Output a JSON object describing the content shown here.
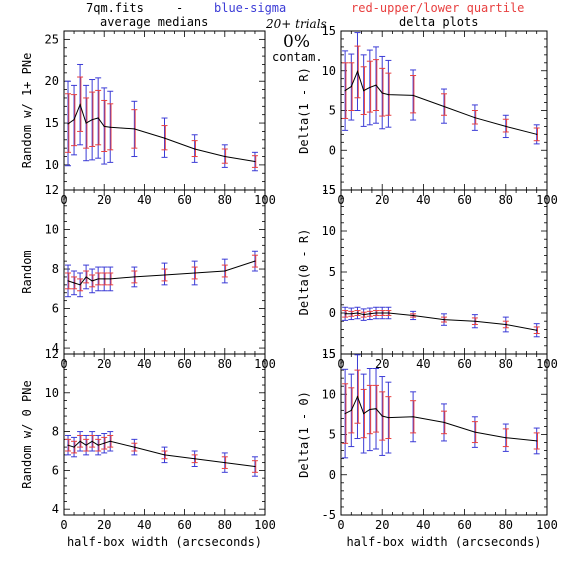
{
  "header": {
    "file": "7qm.fits",
    "dash": "-",
    "blue_label": "blue-sigma",
    "red_label": "red-upper/lower quartile",
    "left_title": "average medians",
    "right_title": "delta plots",
    "trials": "20+ trials",
    "contam_pct": "0%",
    "contam_word": "contam."
  },
  "colors": {
    "line": "#000000",
    "sigma": "#3b3bd6",
    "quartile": "#e84040"
  },
  "chart_data": [
    {
      "type": "line",
      "id": "p1",
      "ylabel": "Random w/ 1+ PNe",
      "xlim": [
        0,
        100
      ],
      "ylim": [
        7,
        26
      ],
      "xticks": [
        0,
        20,
        40,
        60,
        80,
        100
      ],
      "yticks": [
        10,
        15,
        20,
        25
      ],
      "x": [
        2,
        5,
        8,
        11,
        14,
        17,
        20,
        23,
        35,
        50,
        65,
        80,
        95
      ],
      "y": [
        14.9,
        15.4,
        17.2,
        15.0,
        15.4,
        15.6,
        14.6,
        14.5,
        14.3,
        13.2,
        11.9,
        11.0,
        10.4
      ],
      "sigma": [
        [
          9.9,
          20.0
        ],
        [
          11.2,
          19.5
        ],
        [
          12.4,
          22.0
        ],
        [
          10.5,
          19.5
        ],
        [
          10.6,
          20.2
        ],
        [
          10.8,
          20.4
        ],
        [
          10.1,
          19.2
        ],
        [
          10.3,
          18.8
        ],
        [
          11.0,
          17.6
        ],
        [
          10.9,
          15.6
        ],
        [
          10.3,
          13.6
        ],
        [
          9.7,
          12.4
        ],
        [
          9.3,
          11.5
        ]
      ],
      "quartile": [
        [
          11.5,
          18.5
        ],
        [
          12.3,
          18.4
        ],
        [
          14.0,
          20.5
        ],
        [
          12.0,
          18.0
        ],
        [
          12.2,
          18.7
        ],
        [
          12.4,
          18.9
        ],
        [
          11.6,
          17.7
        ],
        [
          11.8,
          17.3
        ],
        [
          12.0,
          16.6
        ],
        [
          11.8,
          14.7
        ],
        [
          11.0,
          12.9
        ],
        [
          10.2,
          11.9
        ],
        [
          9.7,
          11.1
        ]
      ]
    },
    {
      "type": "line",
      "id": "p2",
      "ylabel": "Delta(1 - R)",
      "xlim": [
        0,
        100
      ],
      "ylim": [
        -5,
        15
      ],
      "xticks": [
        0,
        20,
        40,
        60,
        80,
        100
      ],
      "yticks": [
        -5,
        0,
        5,
        10,
        15
      ],
      "x": [
        2,
        5,
        8,
        11,
        14,
        17,
        20,
        23,
        35,
        50,
        65,
        80,
        95
      ],
      "y": [
        7.5,
        8.0,
        9.9,
        7.5,
        7.9,
        8.2,
        7.2,
        7.0,
        6.9,
        5.5,
        4.1,
        3.0,
        2.0
      ],
      "sigma": [
        [
          2.5,
          12.5
        ],
        [
          3.8,
          12.1
        ],
        [
          5.0,
          14.8
        ],
        [
          3.0,
          12.0
        ],
        [
          3.2,
          12.6
        ],
        [
          3.4,
          13.0
        ],
        [
          2.7,
          11.8
        ],
        [
          2.9,
          11.3
        ],
        [
          3.8,
          10.1
        ],
        [
          3.4,
          7.7
        ],
        [
          2.5,
          5.7
        ],
        [
          1.6,
          4.4
        ],
        [
          0.8,
          3.2
        ]
      ],
      "quartile": [
        [
          4.0,
          11.0
        ],
        [
          5.0,
          11.0
        ],
        [
          6.6,
          13.1
        ],
        [
          4.5,
          10.5
        ],
        [
          4.8,
          11.2
        ],
        [
          5.0,
          11.4
        ],
        [
          4.3,
          10.3
        ],
        [
          4.4,
          9.7
        ],
        [
          4.7,
          9.4
        ],
        [
          4.4,
          7.1
        ],
        [
          3.3,
          5.0
        ],
        [
          2.3,
          3.9
        ],
        [
          1.2,
          2.8
        ]
      ]
    },
    {
      "type": "line",
      "id": "p3",
      "ylabel": "Random",
      "xlim": [
        0,
        100
      ],
      "ylim": [
        3.7,
        12
      ],
      "xticks": [
        0,
        20,
        40,
        60,
        80,
        100
      ],
      "yticks": [
        4,
        6,
        8,
        10,
        12
      ],
      "x": [
        2,
        5,
        8,
        11,
        14,
        17,
        20,
        23,
        35,
        50,
        65,
        80,
        95
      ],
      "y": [
        7.4,
        7.3,
        7.2,
        7.6,
        7.4,
        7.5,
        7.5,
        7.5,
        7.6,
        7.7,
        7.8,
        7.9,
        8.4
      ],
      "sigma": [
        [
          6.6,
          8.2
        ],
        [
          6.7,
          7.9
        ],
        [
          6.6,
          7.8
        ],
        [
          7.0,
          8.2
        ],
        [
          6.8,
          8.0
        ],
        [
          6.9,
          8.1
        ],
        [
          6.9,
          8.1
        ],
        [
          6.9,
          8.1
        ],
        [
          7.1,
          8.1
        ],
        [
          7.2,
          8.3
        ],
        [
          7.2,
          8.4
        ],
        [
          7.3,
          8.5
        ],
        [
          7.9,
          8.9
        ]
      ],
      "quartile": [
        [
          7.0,
          7.8
        ],
        [
          7.0,
          7.6
        ],
        [
          6.9,
          7.5
        ],
        [
          7.3,
          7.9
        ],
        [
          7.1,
          7.7
        ],
        [
          7.2,
          7.8
        ],
        [
          7.2,
          7.8
        ],
        [
          7.2,
          7.8
        ],
        [
          7.3,
          7.9
        ],
        [
          7.4,
          8.0
        ],
        [
          7.5,
          8.1
        ],
        [
          7.6,
          8.2
        ],
        [
          8.1,
          8.7
        ]
      ]
    },
    {
      "type": "line",
      "id": "p4",
      "ylabel": "Delta(0 - R)",
      "xlim": [
        0,
        100
      ],
      "ylim": [
        -5,
        15
      ],
      "xticks": [
        0,
        20,
        40,
        60,
        80,
        100
      ],
      "yticks": [
        -5,
        0,
        5,
        10,
        15
      ],
      "x": [
        2,
        5,
        8,
        11,
        14,
        17,
        20,
        23,
        35,
        50,
        65,
        80,
        95
      ],
      "y": [
        -0.1,
        -0.1,
        0.0,
        -0.2,
        -0.1,
        0.0,
        0.0,
        0.0,
        -0.3,
        -0.8,
        -1.0,
        -1.4,
        -2.1
      ],
      "sigma": [
        [
          -0.9,
          0.7
        ],
        [
          -0.8,
          0.6
        ],
        [
          -0.7,
          0.7
        ],
        [
          -0.9,
          0.5
        ],
        [
          -0.8,
          0.6
        ],
        [
          -0.7,
          0.7
        ],
        [
          -0.7,
          0.7
        ],
        [
          -0.7,
          0.7
        ],
        [
          -0.8,
          0.2
        ],
        [
          -1.5,
          -0.1
        ],
        [
          -1.8,
          -0.2
        ],
        [
          -2.3,
          -0.5
        ],
        [
          -2.9,
          -1.3
        ]
      ],
      "quartile": [
        [
          -0.5,
          0.3
        ],
        [
          -0.4,
          0.2
        ],
        [
          -0.3,
          0.3
        ],
        [
          -0.5,
          0.1
        ],
        [
          -0.4,
          0.2
        ],
        [
          -0.3,
          0.3
        ],
        [
          -0.3,
          0.3
        ],
        [
          -0.3,
          0.3
        ],
        [
          -0.5,
          -0.1
        ],
        [
          -1.1,
          -0.5
        ],
        [
          -1.4,
          -0.6
        ],
        [
          -1.8,
          -1.0
        ],
        [
          -2.5,
          -1.7
        ]
      ]
    },
    {
      "type": "line",
      "id": "p5",
      "ylabel": "Random w/ 0 PNe",
      "xlim": [
        0,
        100
      ],
      "ylim": [
        3.7,
        12
      ],
      "xticks": [
        0,
        20,
        40,
        60,
        80,
        100
      ],
      "yticks": [
        4,
        6,
        8,
        10,
        12
      ],
      "x": [
        2,
        5,
        8,
        11,
        14,
        17,
        20,
        23,
        35,
        50,
        65,
        80,
        95
      ],
      "y": [
        7.3,
        7.2,
        7.5,
        7.3,
        7.5,
        7.3,
        7.4,
        7.5,
        7.2,
        6.8,
        6.6,
        6.4,
        6.2
      ],
      "sigma": [
        [
          6.8,
          7.8
        ],
        [
          6.7,
          7.7
        ],
        [
          7.0,
          8.0
        ],
        [
          6.8,
          7.8
        ],
        [
          7.0,
          8.0
        ],
        [
          6.8,
          7.8
        ],
        [
          6.9,
          7.9
        ],
        [
          7.0,
          8.0
        ],
        [
          6.8,
          7.6
        ],
        [
          6.4,
          7.2
        ],
        [
          6.2,
          7.0
        ],
        [
          5.9,
          6.9
        ],
        [
          5.7,
          6.7
        ]
      ],
      "quartile": [
        [
          7.0,
          7.6
        ],
        [
          6.9,
          7.5
        ],
        [
          7.2,
          7.8
        ],
        [
          7.0,
          7.6
        ],
        [
          7.2,
          7.8
        ],
        [
          7.0,
          7.6
        ],
        [
          7.1,
          7.7
        ],
        [
          7.2,
          7.8
        ],
        [
          7.0,
          7.4
        ],
        [
          6.6,
          7.0
        ],
        [
          6.4,
          6.8
        ],
        [
          6.1,
          6.7
        ],
        [
          5.9,
          6.5
        ]
      ]
    },
    {
      "type": "line",
      "id": "p6",
      "ylabel": "Delta(1 - 0)",
      "xlim": [
        0,
        100
      ],
      "ylim": [
        -5,
        15
      ],
      "xticks": [
        0,
        20,
        40,
        60,
        80,
        100
      ],
      "yticks": [
        -5,
        0,
        5,
        10,
        15
      ],
      "xlabel": "half-box width (arcseconds)",
      "x": [
        2,
        5,
        8,
        11,
        14,
        17,
        20,
        23,
        35,
        50,
        65,
        80,
        95
      ],
      "y": [
        7.6,
        8.0,
        9.7,
        7.6,
        8.1,
        8.2,
        7.3,
        7.1,
        7.2,
        6.5,
        5.3,
        4.6,
        4.2
      ],
      "sigma": [
        [
          2.1,
          13.1
        ],
        [
          3.5,
          12.5
        ],
        [
          4.5,
          14.9
        ],
        [
          2.7,
          12.5
        ],
        [
          3.0,
          13.2
        ],
        [
          3.2,
          13.2
        ],
        [
          2.4,
          12.2
        ],
        [
          2.7,
          11.5
        ],
        [
          4.1,
          10.3
        ],
        [
          4.2,
          8.8
        ],
        [
          3.4,
          7.2
        ],
        [
          2.9,
          6.3
        ],
        [
          2.6,
          5.8
        ]
      ],
      "quartile": [
        [
          3.9,
          11.3
        ],
        [
          5.2,
          10.8
        ],
        [
          6.4,
          13.0
        ],
        [
          4.6,
          10.6
        ],
        [
          5.1,
          11.1
        ],
        [
          5.3,
          11.1
        ],
        [
          4.3,
          10.3
        ],
        [
          4.5,
          9.7
        ],
        [
          5.2,
          9.2
        ],
        [
          5.1,
          7.9
        ],
        [
          4.0,
          6.6
        ],
        [
          3.5,
          5.7
        ],
        [
          3.2,
          5.2
        ]
      ]
    }
  ],
  "footer": {
    "xlabel_left": "half-box width (arcseconds)",
    "xlabel_right": "half-box width (arcseconds)"
  }
}
